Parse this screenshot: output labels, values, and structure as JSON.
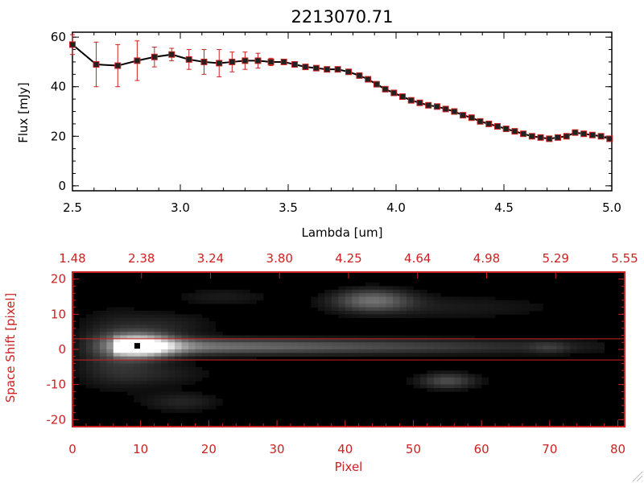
{
  "colors": {
    "axis": "#000000",
    "accent": "#cc2222",
    "image_bg": "#000000"
  },
  "chart_data": [
    {
      "type": "line",
      "title": "2213070.71",
      "xlabel": "Lambda [um]",
      "ylabel": "Flux [mJy]",
      "xlim": [
        2.5,
        5.0
      ],
      "ylim": [
        -2,
        62
      ],
      "x_ticks": [
        "2.5",
        "3.0",
        "3.5",
        "4.0",
        "4.5",
        "5.0"
      ],
      "y_ticks": [
        "0",
        "20",
        "40",
        "60"
      ],
      "x": [
        2.5,
        2.61,
        2.71,
        2.8,
        2.88,
        2.96,
        3.04,
        3.11,
        3.18,
        3.24,
        3.3,
        3.36,
        3.42,
        3.48,
        3.53,
        3.58,
        3.63,
        3.68,
        3.73,
        3.78,
        3.83,
        3.87,
        3.91,
        3.95,
        3.99,
        4.03,
        4.07,
        4.11,
        4.15,
        4.19,
        4.23,
        4.27,
        4.31,
        4.35,
        4.39,
        4.43,
        4.47,
        4.51,
        4.55,
        4.59,
        4.63,
        4.67,
        4.71,
        4.75,
        4.79,
        4.83,
        4.87,
        4.91,
        4.95,
        4.99
      ],
      "y": [
        57,
        49,
        48.5,
        50.5,
        52,
        53,
        51,
        50,
        49.5,
        50,
        50.5,
        50.5,
        50,
        50,
        49,
        48,
        47.5,
        47,
        47,
        46,
        44.5,
        43,
        41,
        39,
        37.5,
        36,
        34.5,
        33.5,
        32.5,
        32,
        31,
        30,
        28.5,
        27.5,
        26,
        25,
        24,
        23,
        22,
        21,
        20,
        19.5,
        19,
        19.5,
        20,
        21.5,
        21,
        20.5,
        20,
        19
      ],
      "yerr": [
        4,
        9,
        8.5,
        8,
        4,
        2.5,
        4,
        5,
        5.5,
        4,
        3.5,
        3,
        1.5,
        1,
        1,
        1,
        1,
        1,
        1,
        1,
        1,
        1,
        1,
        1,
        1,
        1,
        1,
        1,
        1,
        1,
        1,
        1,
        1,
        1,
        1,
        1,
        1,
        1,
        1,
        1,
        1,
        1,
        1,
        1,
        1,
        1,
        1,
        1,
        1,
        1
      ]
    },
    {
      "type": "heatmap",
      "xlabel": "Pixel",
      "ylabel": "Space Shift [pixel]",
      "xlim": [
        0,
        81
      ],
      "ylim": [
        -22,
        22
      ],
      "x_ticks": [
        "0",
        "10",
        "20",
        "30",
        "40",
        "50",
        "60",
        "70",
        "80"
      ],
      "y_ticks": [
        "-20",
        "-10",
        "0",
        "10",
        "20"
      ],
      "top_ticks": [
        "1.48",
        "2.38",
        "3.24",
        "3.80",
        "4.25",
        "4.64",
        "4.98",
        "5.29",
        "5.55"
      ],
      "aperture_lines": [
        3,
        -3
      ],
      "marker": {
        "x": 9.5,
        "y": 1
      },
      "features": [
        {
          "x": 10,
          "y": 1,
          "sx": 3.5,
          "sy": 2.2,
          "amp": 0.9
        },
        {
          "x": 6,
          "y": 0,
          "sx": 4,
          "sy": 7,
          "amp": 0.18
        },
        {
          "x": 14,
          "y": 7,
          "sx": 5,
          "sy": 2.5,
          "amp": 0.12
        },
        {
          "x": 12,
          "y": -7,
          "sx": 6,
          "sy": 2.5,
          "amp": 0.12
        },
        {
          "x": 44,
          "y": 14,
          "sx": 4,
          "sy": 2.2,
          "amp": 0.4
        },
        {
          "x": 55,
          "y": 12,
          "sx": 12,
          "sy": 2.5,
          "amp": 0.1
        },
        {
          "x": 55,
          "y": -9,
          "sx": 3,
          "sy": 1.6,
          "amp": 0.3
        },
        {
          "x": 16,
          "y": -15,
          "sx": 4,
          "sy": 2,
          "amp": 0.14
        },
        {
          "x": 22,
          "y": 15,
          "sx": 5,
          "sy": 1.8,
          "amp": 0.1
        },
        {
          "x": 70,
          "y": 0.5,
          "sx": 2,
          "sy": 1.2,
          "amp": 0.12
        }
      ]
    }
  ]
}
